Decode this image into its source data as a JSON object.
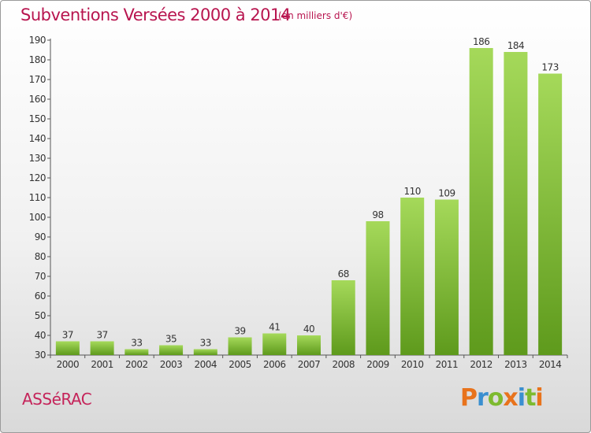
{
  "chart_data": {
    "type": "bar",
    "title": "Subventions Versées 2000 à 2014",
    "subtitle": "(en milliers d'€)",
    "categories": [
      "2000",
      "2001",
      "2002",
      "2003",
      "2004",
      "2005",
      "2006",
      "2007",
      "2008",
      "2009",
      "2010",
      "2011",
      "2012",
      "2013",
      "2014"
    ],
    "values": [
      37,
      37,
      33,
      35,
      33,
      39,
      41,
      40,
      68,
      98,
      110,
      109,
      186,
      184,
      173
    ],
    "ylim": [
      30,
      190
    ],
    "yticks": [
      30,
      40,
      50,
      60,
      70,
      80,
      90,
      100,
      110,
      120,
      130,
      140,
      150,
      160,
      170,
      180,
      190
    ],
    "grid": false,
    "xlabel": "",
    "ylabel": ""
  },
  "footer": {
    "commune": "ASSéRAC",
    "brand": "Proxiti"
  },
  "colors": {
    "title": "#b8154f",
    "bar": "#8cc63f",
    "bar_dark": "#5e9a1c",
    "brand_letters": [
      "#e8731c",
      "#3a8fd0",
      "#7dba2f",
      "#e8731c",
      "#3a8fd0",
      "#7dba2f",
      "#e8731c"
    ]
  }
}
